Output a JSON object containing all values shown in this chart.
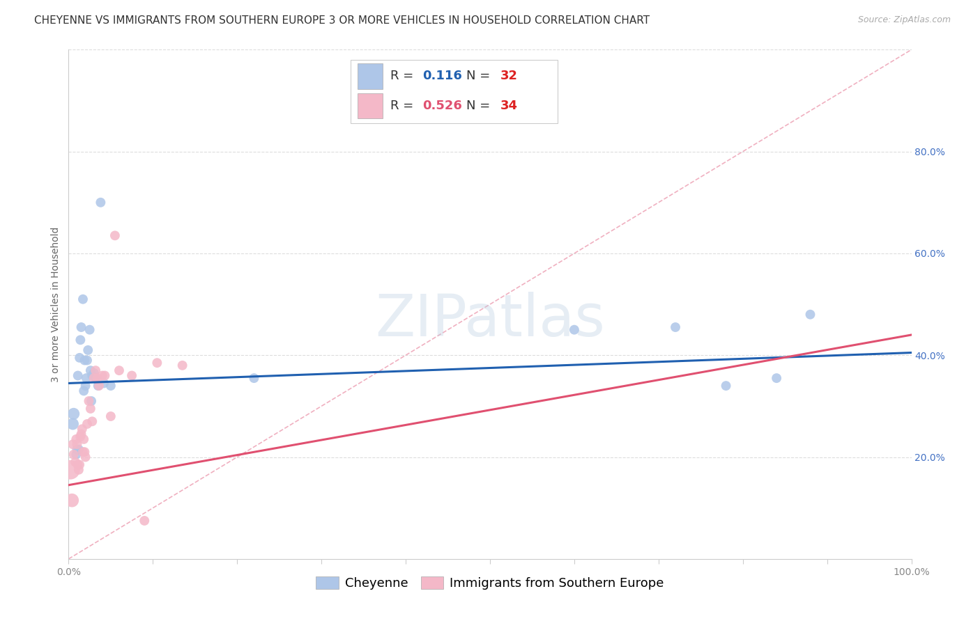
{
  "title": "CHEYENNE VS IMMIGRANTS FROM SOUTHERN EUROPE 3 OR MORE VEHICLES IN HOUSEHOLD CORRELATION CHART",
  "source": "Source: ZipAtlas.com",
  "ylabel": "3 or more Vehicles in Household",
  "watermark": "ZIPatlas",
  "blue_R": "0.116",
  "blue_N": "32",
  "pink_R": "0.526",
  "pink_N": "34",
  "blue_label": "Cheyenne",
  "pink_label": "Immigrants from Southern Europe",
  "xlim": [
    0.0,
    1.0
  ],
  "ylim": [
    0.0,
    1.0
  ],
  "xticks": [
    0.0,
    0.1,
    0.2,
    0.3,
    0.4,
    0.5,
    0.6,
    0.7,
    0.8,
    0.9,
    1.0
  ],
  "xtick_labels_show": [
    "0.0%",
    "",
    "",
    "",
    "",
    "",
    "",
    "",
    "",
    "",
    "100.0%"
  ],
  "yticks_right": [
    0.2,
    0.4,
    0.6,
    0.8
  ],
  "ytick_labels_right": [
    "20.0%",
    "40.0%",
    "60.0%",
    "80.0%"
  ],
  "blue_color": "#aec6e8",
  "blue_edge_color": "#aec6e8",
  "blue_line_color": "#2060b0",
  "pink_color": "#f4b8c8",
  "pink_edge_color": "#f4b8c8",
  "pink_line_color": "#e05070",
  "diag_line_color": "#f0b0c0",
  "blue_scatter_x": [
    0.005,
    0.006,
    0.009,
    0.01,
    0.011,
    0.012,
    0.013,
    0.014,
    0.015,
    0.017,
    0.018,
    0.019,
    0.02,
    0.021,
    0.022,
    0.023,
    0.025,
    0.026,
    0.027,
    0.028,
    0.03,
    0.032,
    0.035,
    0.038,
    0.042,
    0.05,
    0.22,
    0.6,
    0.72,
    0.78,
    0.84,
    0.88
  ],
  "blue_scatter_y": [
    0.265,
    0.285,
    0.205,
    0.215,
    0.36,
    0.215,
    0.395,
    0.43,
    0.455,
    0.51,
    0.33,
    0.39,
    0.34,
    0.355,
    0.39,
    0.41,
    0.45,
    0.37,
    0.31,
    0.36,
    0.365,
    0.355,
    0.34,
    0.7,
    0.345,
    0.34,
    0.355,
    0.45,
    0.455,
    0.34,
    0.355,
    0.48
  ],
  "pink_scatter_x": [
    0.002,
    0.004,
    0.005,
    0.006,
    0.008,
    0.009,
    0.01,
    0.011,
    0.012,
    0.013,
    0.014,
    0.015,
    0.016,
    0.017,
    0.018,
    0.019,
    0.02,
    0.022,
    0.024,
    0.026,
    0.028,
    0.03,
    0.032,
    0.034,
    0.036,
    0.04,
    0.043,
    0.05,
    0.055,
    0.06,
    0.075,
    0.09,
    0.105,
    0.135
  ],
  "pink_scatter_y": [
    0.175,
    0.115,
    0.225,
    0.205,
    0.19,
    0.235,
    0.225,
    0.185,
    0.175,
    0.185,
    0.24,
    0.245,
    0.255,
    0.21,
    0.235,
    0.21,
    0.2,
    0.265,
    0.31,
    0.295,
    0.27,
    0.355,
    0.37,
    0.355,
    0.34,
    0.36,
    0.36,
    0.28,
    0.635,
    0.37,
    0.36,
    0.075,
    0.385,
    0.38
  ],
  "blue_line_x": [
    0.0,
    1.0
  ],
  "blue_line_y": [
    0.345,
    0.405
  ],
  "pink_line_x": [
    0.0,
    1.0
  ],
  "pink_line_y": [
    0.145,
    0.44
  ],
  "diag_line_x": [
    0.0,
    1.0
  ],
  "diag_line_y": [
    0.0,
    1.0
  ],
  "title_fontsize": 11,
  "source_fontsize": 9,
  "axis_label_fontsize": 10,
  "tick_fontsize": 10,
  "legend_fontsize": 13,
  "watermark_fontsize": 60,
  "watermark_alpha": 0.35,
  "watermark_color": "#b8cce0",
  "marker_size": 100,
  "background_color": "#ffffff",
  "right_tick_color": "#4472c4",
  "spine_color": "#cccccc",
  "grid_color": "#dddddd",
  "title_color": "#333333",
  "source_color": "#aaaaaa",
  "axis_label_color": "#666666",
  "xtick_color": "#888888",
  "legend_text_color": "#333333",
  "legend_R_color_blue": "#2060b0",
  "legend_R_color_pink": "#e05070",
  "legend_N_color": "#dd2222"
}
